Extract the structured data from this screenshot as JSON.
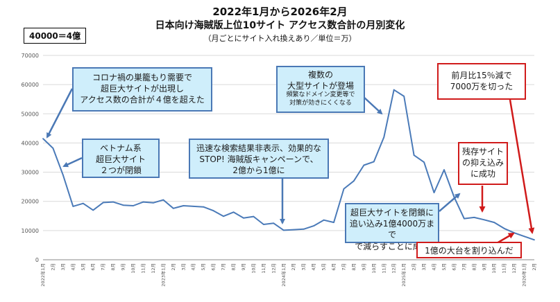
{
  "header": {
    "title": "2022年1月から2026年2月",
    "subtitle": "日本向け海賊版上位10サイト アクセス数合計の月別変化",
    "note": "（月ごとにサイト入れ換えあり／単位＝万）",
    "scale_note": "40000＝4億"
  },
  "chart_data": {
    "type": "line",
    "title": "日本向け海賊版上位10サイト アクセス数合計の月別変化",
    "ylim": [
      0,
      70000
    ],
    "yticks": [
      0,
      10000,
      20000,
      30000,
      40000,
      50000,
      60000,
      70000
    ],
    "ytick_labels": [
      "0",
      "10000",
      "20000",
      "30000",
      "40000",
      "50000",
      "60000",
      "70000"
    ],
    "x_labels": [
      "2022年1月",
      "2月",
      "3月",
      "4月",
      "5月",
      "6月",
      "7月",
      "8月",
      "9月",
      "10月",
      "11月",
      "12月",
      "2023年1月",
      "2月",
      "3月",
      "4月",
      "5月",
      "6月",
      "7月",
      "8月",
      "9月",
      "10月",
      "11月",
      "12月",
      "2024年1月",
      "2月",
      "3月",
      "4月",
      "5月",
      "6月",
      "7月",
      "8月",
      "9月",
      "10月",
      "11月",
      "12月",
      "2025年1月",
      "2月",
      "3月",
      "4月",
      "5月",
      "6月",
      "7月",
      "8月",
      "9月",
      "10月",
      "11月",
      "12月",
      "2026年1月",
      "2月"
    ],
    "series": [
      {
        "color": "#4a7ab8",
        "values": [
          41500,
          38200,
          29000,
          18300,
          19300,
          17000,
          19600,
          19800,
          18700,
          18500,
          19800,
          19500,
          20500,
          17600,
          18500,
          18300,
          18100,
          16800,
          14900,
          16300,
          14300,
          14800,
          12100,
          12500,
          10100,
          10300,
          10500,
          11600,
          13600,
          12800,
          24300,
          27000,
          32400,
          33600,
          42000,
          58200,
          56000,
          35800,
          33400,
          23000,
          30800,
          21500,
          14100,
          14500,
          13700,
          12800,
          10700,
          9200,
          8000,
          6800
        ]
      }
    ]
  },
  "callouts": [
    {
      "id": "covid",
      "lines": [
        "コロナ禍の巣籠もり需要で",
        "超巨大サイトが出現し",
        "アクセス数の合計が４億を超えた"
      ]
    },
    {
      "id": "vietnam",
      "lines": [
        "ベトナム系",
        "超巨大サイト",
        "２つが閉鎖"
      ]
    },
    {
      "id": "stop",
      "lines": [
        "迅速な検索結果非表示、効果的な",
        "STOP! 海賊版キャンペーンで、",
        "2億から1億に"
      ]
    },
    {
      "id": "multiple",
      "lines": [
        "複数の",
        "大型サイトが登場"
      ],
      "small_lines": [
        "頻繁なドメイン変更等で",
        "対策が効きにくくなる"
      ]
    },
    {
      "id": "closed",
      "lines": [
        "超巨大サイトを閉鎖に",
        "追い込み1億4000万まで",
        "で減らすことに成功"
      ]
    },
    {
      "id": "drop15",
      "lines": [
        "前月比15％減で",
        "7000万を切った"
      ]
    },
    {
      "id": "remaining",
      "lines": [
        "残存サイト",
        "の抑え込み",
        "に成功"
      ]
    },
    {
      "id": "below1",
      "lines": [
        "1億の大台を割り込んだ"
      ]
    }
  ]
}
